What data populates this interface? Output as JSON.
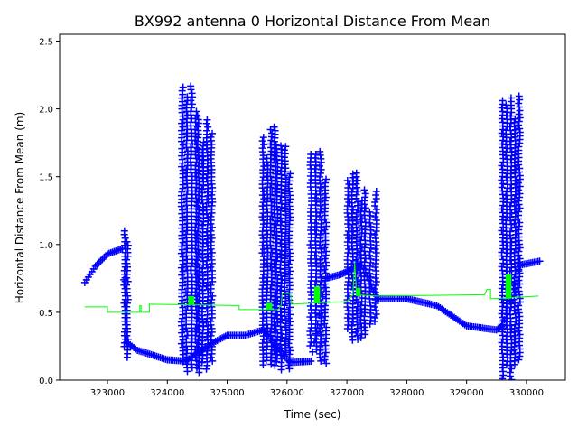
{
  "chart_data": {
    "type": "scatter",
    "title": "BX992 antenna 0 Horizontal Distance From Mean",
    "xlabel": "Time (sec)",
    "ylabel": "Horizontal Distance From Mean (m)",
    "xlim": [
      322200,
      330650
    ],
    "ylim": [
      0,
      2.55
    ],
    "xticks": [
      323000,
      324000,
      325000,
      326000,
      327000,
      328000,
      329000,
      330000
    ],
    "yticks": [
      0.0,
      0.5,
      1.0,
      1.5,
      2.0,
      2.5
    ],
    "ytick_labels": [
      "0.0",
      "0.5",
      "1.0",
      "1.5",
      "2.0",
      "2.5"
    ],
    "grid": false,
    "series": [
      {
        "marker": "plus",
        "color": "#0000ff",
        "trend": [
          [
            322620,
            0.72
          ],
          [
            322800,
            0.84
          ],
          [
            323000,
            0.93
          ],
          [
            323250,
            0.97
          ],
          [
            323320,
            0.28
          ],
          [
            323500,
            0.22
          ],
          [
            324000,
            0.15
          ],
          [
            324300,
            0.14
          ],
          [
            324780,
            0.28
          ],
          [
            325000,
            0.33
          ],
          [
            325300,
            0.33
          ],
          [
            325600,
            0.37
          ],
          [
            326050,
            0.13
          ],
          [
            326400,
            0.14
          ],
          [
            326650,
            0.75
          ],
          [
            326900,
            0.78
          ],
          [
            327000,
            0.8
          ],
          [
            327250,
            0.85
          ],
          [
            327500,
            0.6
          ],
          [
            328000,
            0.6
          ],
          [
            328500,
            0.55
          ],
          [
            329000,
            0.4
          ],
          [
            329500,
            0.37
          ],
          [
            329600,
            0.4
          ],
          [
            329900,
            0.85
          ],
          [
            330250,
            0.88
          ]
        ],
        "bursts": [
          [
            323290,
            323330,
            0.1,
            1.1
          ],
          [
            324250,
            324480,
            0.03,
            2.2
          ],
          [
            324520,
            324740,
            0.02,
            1.97
          ],
          [
            325600,
            325800,
            0.02,
            1.87
          ],
          [
            325830,
            326040,
            0.05,
            1.75
          ],
          [
            326400,
            326640,
            0.1,
            1.7
          ],
          [
            327020,
            327240,
            0.27,
            1.55
          ],
          [
            327300,
            327480,
            0.3,
            1.45
          ],
          [
            329600,
            329880,
            0.0,
            2.13
          ]
        ]
      },
      {
        "marker": "line",
        "color": "#00ff00",
        "points": [
          [
            322620,
            0.54
          ],
          [
            323000,
            0.54
          ],
          [
            323000,
            0.5
          ],
          [
            323540,
            0.5
          ],
          [
            323540,
            0.55
          ],
          [
            323560,
            0.55
          ],
          [
            323560,
            0.5
          ],
          [
            323700,
            0.5
          ],
          [
            323700,
            0.56
          ],
          [
            325200,
            0.55
          ],
          [
            325200,
            0.52
          ],
          [
            325850,
            0.52
          ],
          [
            325900,
            0.55
          ],
          [
            325920,
            0.64
          ],
          [
            326060,
            0.64
          ],
          [
            326070,
            0.56
          ],
          [
            327000,
            0.58
          ],
          [
            327100,
            0.63
          ],
          [
            327130,
            0.87
          ],
          [
            327160,
            0.63
          ],
          [
            327500,
            0.62
          ],
          [
            329300,
            0.63
          ],
          [
            329340,
            0.67
          ],
          [
            329400,
            0.67
          ],
          [
            329400,
            0.6
          ],
          [
            330200,
            0.62
          ]
        ],
        "blocks": [
          [
            324350,
            324450,
            0.56,
            0.62
          ],
          [
            325650,
            325750,
            0.52,
            0.57
          ],
          [
            326450,
            326550,
            0.57,
            0.69
          ],
          [
            327150,
            327230,
            0.62,
            0.68
          ],
          [
            329650,
            329750,
            0.6,
            0.78
          ]
        ]
      }
    ]
  }
}
